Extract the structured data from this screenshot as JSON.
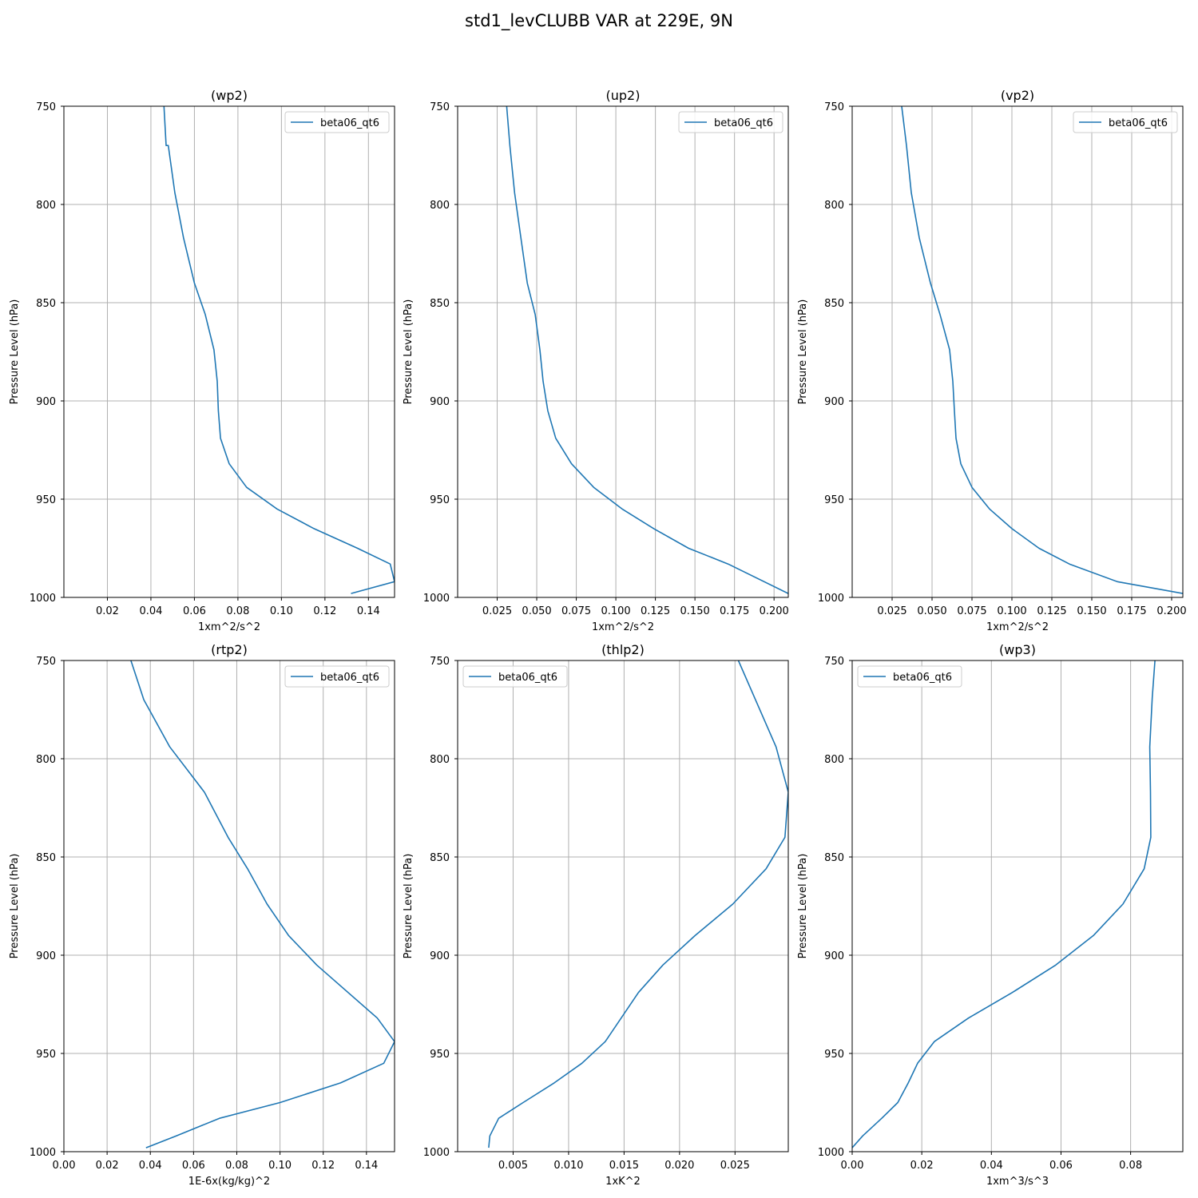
{
  "figure": {
    "title": "std1_levCLUBB VAR at 229E, 9N"
  },
  "colors": {
    "series": "#1f77b4",
    "grid": "#b0b0b0",
    "axis": "#000000",
    "legend_border": "#cccccc"
  },
  "chart_data": [
    {
      "type": "line",
      "title": "(wp2)",
      "xlabel": "1xm^2/s^2",
      "ylabel": "Pressure Level (hPa)",
      "xlim": [
        0.0,
        0.152
      ],
      "ylim": [
        1000,
        750
      ],
      "xticks": [
        0.02,
        0.04,
        0.06,
        0.08,
        0.1,
        0.12,
        0.14
      ],
      "xtick_labels": [
        "0.02",
        "0.04",
        "0.06",
        "0.08",
        "0.10",
        "0.12",
        "0.14"
      ],
      "yticks": [
        750,
        800,
        850,
        900,
        950,
        1000
      ],
      "grid": true,
      "legend_position": "upper-right",
      "series": [
        {
          "name": "beta06_qt6",
          "x": [
            0.046,
            0.047,
            0.048,
            0.051,
            0.055,
            0.06,
            0.065,
            0.069,
            0.0705,
            0.071,
            0.072,
            0.076,
            0.084,
            0.098,
            0.115,
            0.135,
            0.15,
            0.152,
            0.132
          ],
          "y": [
            750,
            770,
            770,
            794,
            817,
            840,
            856,
            874,
            890,
            905,
            919,
            932,
            944,
            955,
            965,
            975,
            983,
            992,
            998
          ]
        }
      ]
    },
    {
      "type": "line",
      "title": "(up2)",
      "xlabel": "1xm^2/s^2",
      "ylabel": "Pressure Level (hPa)",
      "xlim": [
        0.0,
        0.209
      ],
      "ylim": [
        1000,
        750
      ],
      "xticks": [
        0.025,
        0.05,
        0.075,
        0.1,
        0.125,
        0.15,
        0.175,
        0.2
      ],
      "xtick_labels": [
        "0.025",
        "0.050",
        "0.075",
        "0.100",
        "0.125",
        "0.150",
        "0.175",
        "0.200"
      ],
      "yticks": [
        750,
        800,
        850,
        900,
        950,
        1000
      ],
      "grid": true,
      "legend_position": "upper-right",
      "series": [
        {
          "name": "beta06_qt6",
          "x": [
            0.031,
            0.033,
            0.036,
            0.04,
            0.044,
            0.049,
            0.052,
            0.054,
            0.057,
            0.062,
            0.072,
            0.086,
            0.104,
            0.124,
            0.146,
            0.171,
            0.209
          ],
          "y": [
            750,
            770,
            794,
            817,
            840,
            856,
            874,
            890,
            905,
            919,
            932,
            944,
            955,
            965,
            975,
            983,
            998
          ]
        }
      ]
    },
    {
      "type": "line",
      "title": "(vp2)",
      "xlabel": "1xm^2/s^2",
      "ylabel": "Pressure Level (hPa)",
      "xlim": [
        0.0,
        0.207
      ],
      "ylim": [
        1000,
        750
      ],
      "xticks": [
        0.025,
        0.05,
        0.075,
        0.1,
        0.125,
        0.15,
        0.175,
        0.2
      ],
      "xtick_labels": [
        "0.025",
        "0.050",
        "0.075",
        "0.100",
        "0.125",
        "0.150",
        "0.175",
        "0.200"
      ],
      "yticks": [
        750,
        800,
        850,
        900,
        950,
        1000
      ],
      "grid": true,
      "legend_position": "upper-right",
      "series": [
        {
          "name": "beta06_qt6",
          "x": [
            0.031,
            0.034,
            0.037,
            0.042,
            0.049,
            0.055,
            0.061,
            0.063,
            0.064,
            0.065,
            0.068,
            0.075,
            0.086,
            0.1,
            0.117,
            0.136,
            0.166,
            0.207
          ],
          "y": [
            750,
            770,
            794,
            817,
            840,
            856,
            874,
            890,
            905,
            919,
            932,
            944,
            955,
            965,
            975,
            983,
            992,
            998
          ]
        }
      ]
    },
    {
      "type": "line",
      "title": "(rtp2)",
      "xlabel": "1E-6x(kg/kg)^2",
      "ylabel": "Pressure Level (hPa)",
      "xlim": [
        0.0,
        0.153
      ],
      "ylim": [
        1000,
        750
      ],
      "xticks": [
        0.0,
        0.02,
        0.04,
        0.06,
        0.08,
        0.1,
        0.12,
        0.14
      ],
      "xtick_labels": [
        "0.00",
        "0.02",
        "0.04",
        "0.06",
        "0.08",
        "0.10",
        "0.12",
        "0.14"
      ],
      "yticks": [
        750,
        800,
        850,
        900,
        950,
        1000
      ],
      "grid": true,
      "legend_position": "upper-right",
      "series": [
        {
          "name": "beta06_qt6",
          "x": [
            0.031,
            0.037,
            0.049,
            0.065,
            0.076,
            0.085,
            0.094,
            0.104,
            0.117,
            0.145,
            0.153,
            0.148,
            0.128,
            0.1,
            0.072,
            0.052,
            0.038
          ],
          "y": [
            750,
            770,
            794,
            817,
            840,
            856,
            874,
            890,
            905,
            932,
            944,
            955,
            965,
            975,
            983,
            992,
            998
          ]
        }
      ]
    },
    {
      "type": "line",
      "title": "(thlp2)",
      "xlabel": "1xK^2",
      "ylabel": "Pressure Level (hPa)",
      "xlim": [
        0.0,
        0.0298
      ],
      "ylim": [
        1000,
        750
      ],
      "xticks": [
        0.005,
        0.01,
        0.015,
        0.02,
        0.025
      ],
      "xtick_labels": [
        "0.005",
        "0.010",
        "0.015",
        "0.020",
        "0.025"
      ],
      "yticks": [
        750,
        800,
        850,
        900,
        950,
        1000
      ],
      "grid": true,
      "legend_position": "upper-left",
      "series": [
        {
          "name": "beta06_qt6",
          "x": [
            0.0253,
            0.0287,
            0.0298,
            0.0295,
            0.0278,
            0.0248,
            0.0214,
            0.0185,
            0.0163,
            0.0133,
            0.0112,
            0.0087,
            0.0059,
            0.0037,
            0.0029,
            0.0028
          ],
          "y": [
            750,
            794,
            817,
            840,
            856,
            874,
            890,
            905,
            919,
            944,
            955,
            965,
            975,
            983,
            992,
            998
          ]
        }
      ]
    },
    {
      "type": "line",
      "title": "(wp3)",
      "xlabel": "1xm^3/s^3",
      "ylabel": "Pressure Level (hPa)",
      "xlim": [
        0.0,
        0.095
      ],
      "ylim": [
        1000,
        750
      ],
      "xticks": [
        0.0,
        0.02,
        0.04,
        0.06,
        0.08
      ],
      "xtick_labels": [
        "0.00",
        "0.02",
        "0.04",
        "0.06",
        "0.08"
      ],
      "yticks": [
        750,
        800,
        850,
        900,
        950,
        1000
      ],
      "grid": true,
      "legend_position": "upper-left",
      "series": [
        {
          "name": "beta06_qt6",
          "x": [
            0.087,
            0.0862,
            0.0855,
            0.0857,
            0.0858,
            0.0839,
            0.0778,
            0.0693,
            0.0585,
            0.046,
            0.0334,
            0.0236,
            0.0188,
            0.0161,
            0.0131,
            0.0085,
            0.003,
            0.0
          ],
          "y": [
            750,
            769,
            794,
            817,
            840,
            856,
            874,
            890,
            905,
            919,
            932,
            944,
            955,
            965,
            975,
            983,
            992,
            998
          ]
        }
      ]
    }
  ]
}
